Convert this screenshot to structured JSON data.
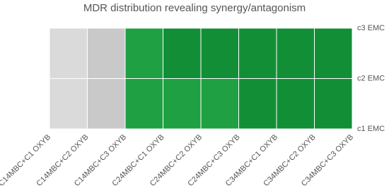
{
  "chart_data": {
    "type": "surface",
    "title": "MDR distribution revealing synergy/antagonism",
    "categories": [
      "C14MBC+C1 OXYB",
      "C14MBC+C2 OXYB",
      "C14MBC+C3 OXYB",
      "C24MBC+C1 OXYB",
      "C24MBC+C2 OXYB",
      "C24MBC+C3 OXYB",
      "C34MBC+C1 OXYB",
      "C34MBC+C2 OXYB",
      "C34MBC+C3 OXYB"
    ],
    "series": [
      {
        "name": "c1 EMC",
        "values": [
          0.2,
          0.25,
          0.3,
          0.6,
          0.5,
          0.8,
          0.85,
          0.8,
          0.7
        ]
      },
      {
        "name": "c2 EMC",
        "values": [
          0.2,
          0.25,
          0.35,
          0.75,
          0.8,
          0.85,
          0.8,
          0.85,
          0.75
        ]
      },
      {
        "name": "c3 EMC",
        "values": [
          0.15,
          0.2,
          0.6,
          0.7,
          0.85,
          0.8,
          0.75,
          0.7,
          0.7
        ]
      }
    ],
    "zlim": [
      0,
      1
    ],
    "colors": [
      "#dadada",
      "#c9c9c9",
      "#1fa043",
      "#128f36"
    ]
  }
}
